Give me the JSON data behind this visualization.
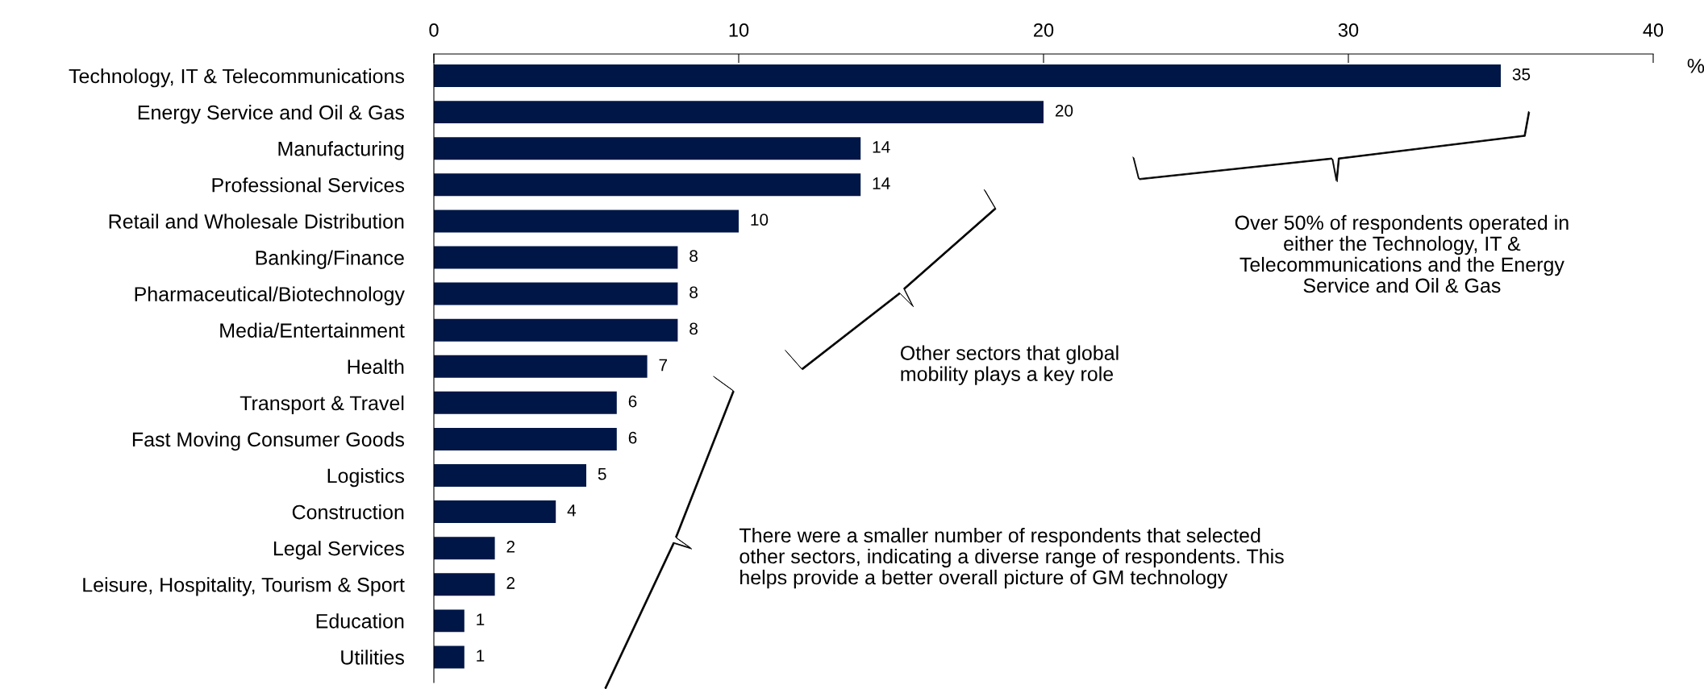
{
  "chart_data": {
    "type": "bar",
    "orientation": "horizontal",
    "categories": [
      "Technology, IT & Telecommunications",
      "Energy Service and Oil & Gas",
      "Manufacturing",
      "Professional Services",
      "Retail and Wholesale Distribution",
      "Banking/Finance",
      "Pharmaceutical/Biotechnology",
      "Media/Entertainment",
      "Health",
      "Transport & Travel",
      "Fast Moving Consumer Goods",
      "Logistics",
      "Construction",
      "Legal Services",
      "Leisure, Hospitality, Tourism & Sport",
      "Education",
      "Utilities"
    ],
    "values": [
      35,
      20,
      14,
      14,
      10,
      8,
      8,
      8,
      7,
      6,
      6,
      5,
      4,
      2,
      2,
      1,
      1
    ],
    "color": "#001646",
    "xlim": [
      0,
      40
    ],
    "xticks": [
      0,
      10,
      20,
      30,
      40
    ],
    "xlabel": "%",
    "data_labels": true,
    "grid": false,
    "legend": false,
    "annotations": [
      "Over 50% of respondents operated in\neither the Technology, IT &\nTelecommunications and the Energy\nService and Oil & Gas",
      "Other sectors that global\nmobility plays a key role",
      "There were a smaller number of respondents that selected\nother sectors, indicating a diverse range of respondents. This\nhelps provide a better overall picture of GM technology"
    ]
  }
}
